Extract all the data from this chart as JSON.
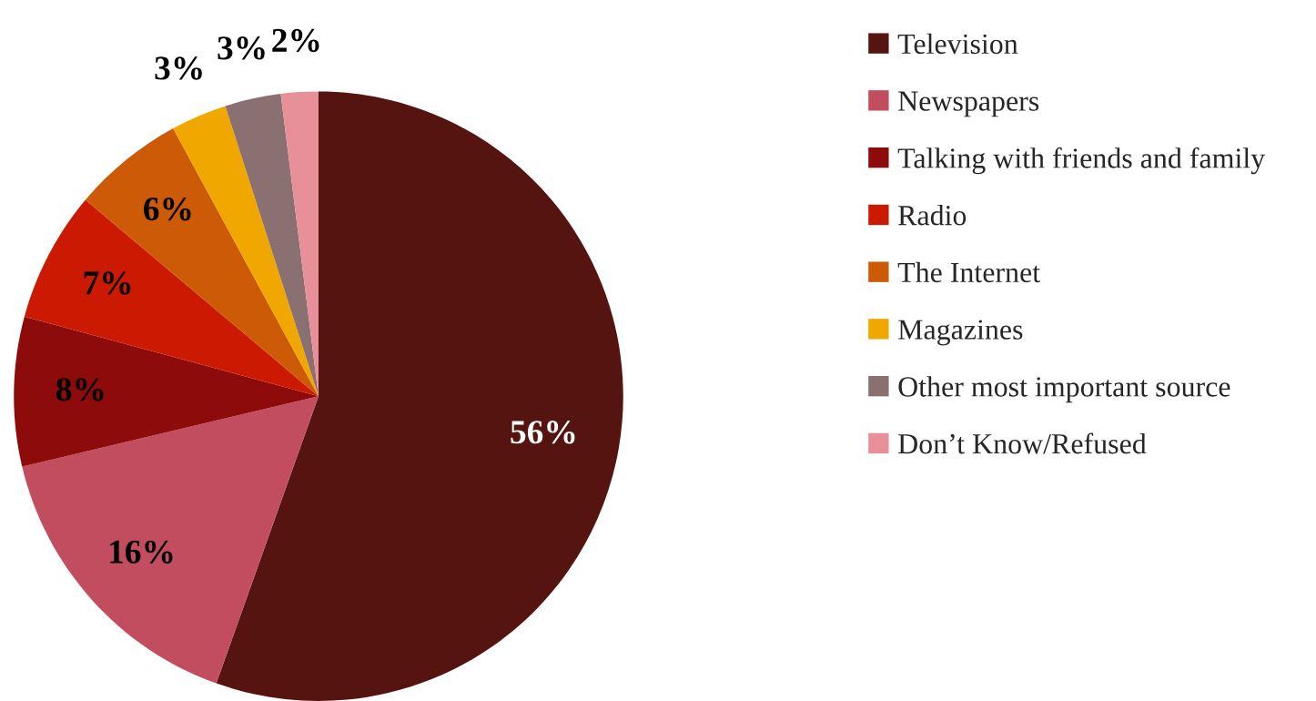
{
  "chart_data": {
    "type": "pie",
    "categories": [
      "Television",
      "Newspapers",
      "Talking with friends and family",
      "Radio",
      "The Internet",
      "Magazines",
      "Other most important source",
      "Don’t Know/Refused"
    ],
    "values": [
      56,
      16,
      8,
      7,
      6,
      3,
      3,
      2
    ],
    "colors": [
      "#561410",
      "#c24d5e",
      "#8e0b0b",
      "#cc1a02",
      "#cc5a06",
      "#f0a800",
      "#8a7070",
      "#e8909a"
    ],
    "value_labels": [
      "56%",
      "16%",
      "8%",
      "7%",
      "6%",
      "3%",
      "3%",
      "2%"
    ],
    "legend": "right"
  }
}
